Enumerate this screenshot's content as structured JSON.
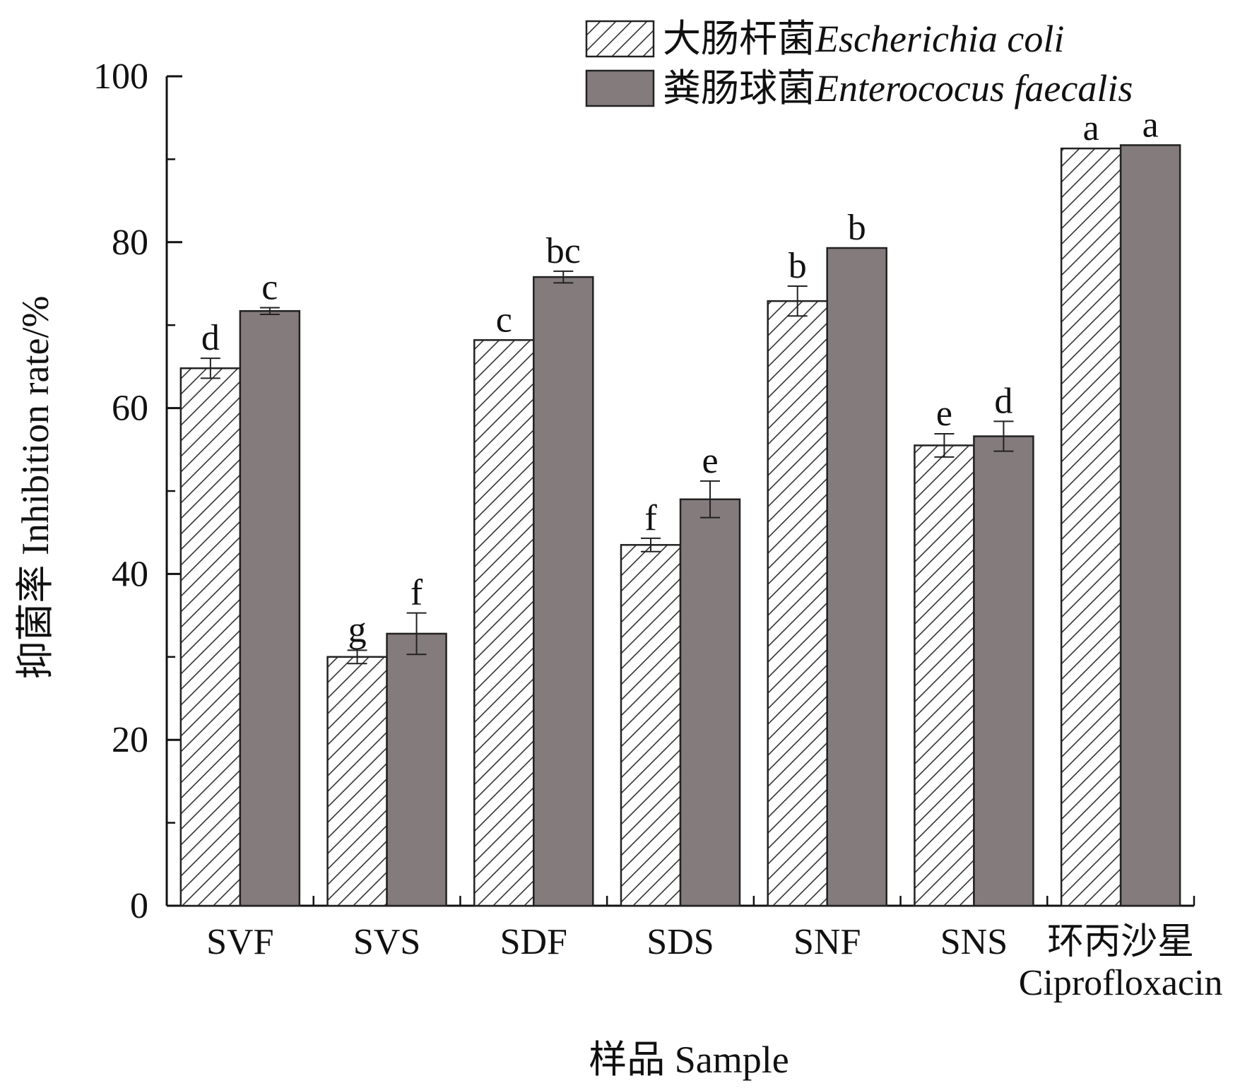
{
  "chart_data": {
    "type": "bar",
    "categories": [
      "SVF",
      "SVS",
      "SDF",
      "SDS",
      "SNF",
      "SNS",
      "环丙沙星\nCiprofloxacin"
    ],
    "series": [
      {
        "name_cn": "大肠杆菌",
        "name_latin": "Escherichia coli",
        "fill": "hatched",
        "color": "#ffffff",
        "values": [
          64.8,
          30.0,
          68.2,
          43.5,
          72.9,
          55.5,
          91.3
        ],
        "errors": [
          1.2,
          0.8,
          0.0,
          0.8,
          1.8,
          1.4,
          0.0
        ],
        "letters": [
          "d",
          "g",
          "c",
          "f",
          "b",
          "e",
          "a"
        ]
      },
      {
        "name_cn": "粪肠球菌",
        "name_latin": "Enterococus faecalis",
        "fill": "solid",
        "color": "#847b7d",
        "values": [
          71.7,
          32.8,
          75.8,
          49.0,
          79.3,
          56.6,
          91.7
        ],
        "errors": [
          0.4,
          2.5,
          0.7,
          2.2,
          0.0,
          1.8,
          0.0
        ],
        "letters": [
          "c",
          "f",
          "bc",
          "e",
          "b",
          "d",
          "a"
        ]
      }
    ],
    "xlabel": "样品 Sample",
    "ylabel": "抑菌率 Inhibition rate/%",
    "ylim": [
      0,
      100
    ],
    "yticks": [
      0,
      20,
      40,
      60,
      80,
      100
    ],
    "legend_position": "top-right",
    "grid": false
  }
}
